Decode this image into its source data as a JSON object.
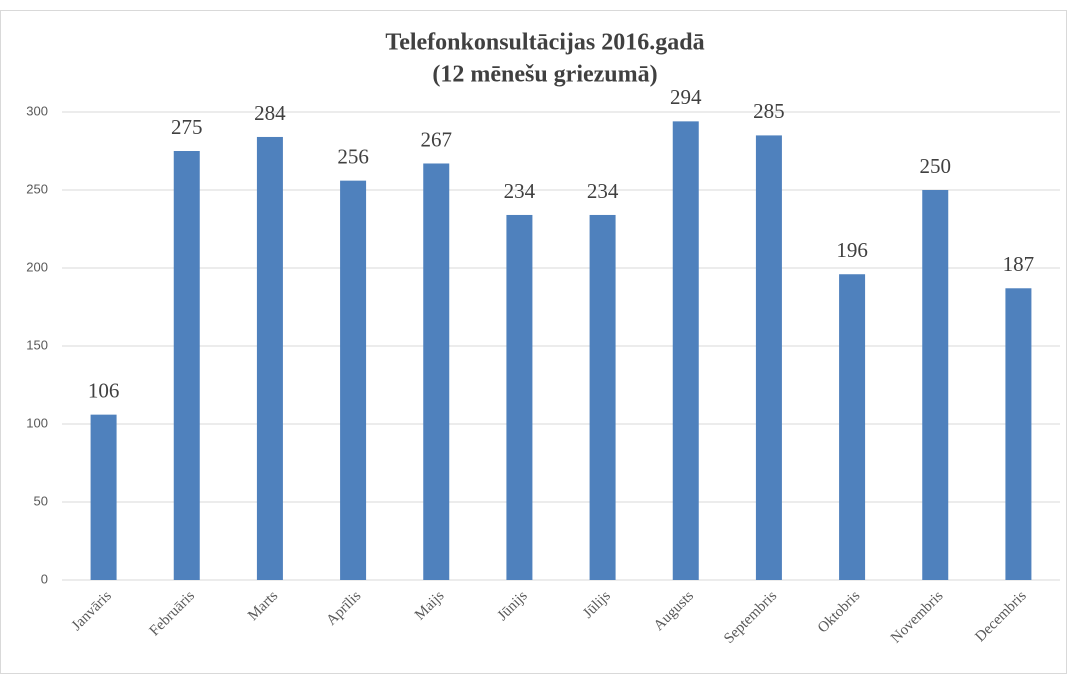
{
  "chart_data": {
    "type": "bar",
    "title": "Telefonkonsultācijas 2016.gadā",
    "subtitle": "(12 mēnešu griezumā)",
    "categories": [
      "Janvāris",
      "Februāris",
      "Marts",
      "Aprīlis",
      "Maijs",
      "Jūnijs",
      "Jūlijs",
      "Augusts",
      "Septembris",
      "Oktobris",
      "Novembris",
      "Decembris"
    ],
    "values": [
      106,
      275,
      284,
      256,
      267,
      234,
      234,
      294,
      285,
      196,
      250,
      187
    ],
    "color": "#4f81bd",
    "ylim": [
      0,
      300
    ],
    "yticks": [
      0,
      50,
      100,
      150,
      200,
      250,
      300
    ],
    "grid": true
  }
}
